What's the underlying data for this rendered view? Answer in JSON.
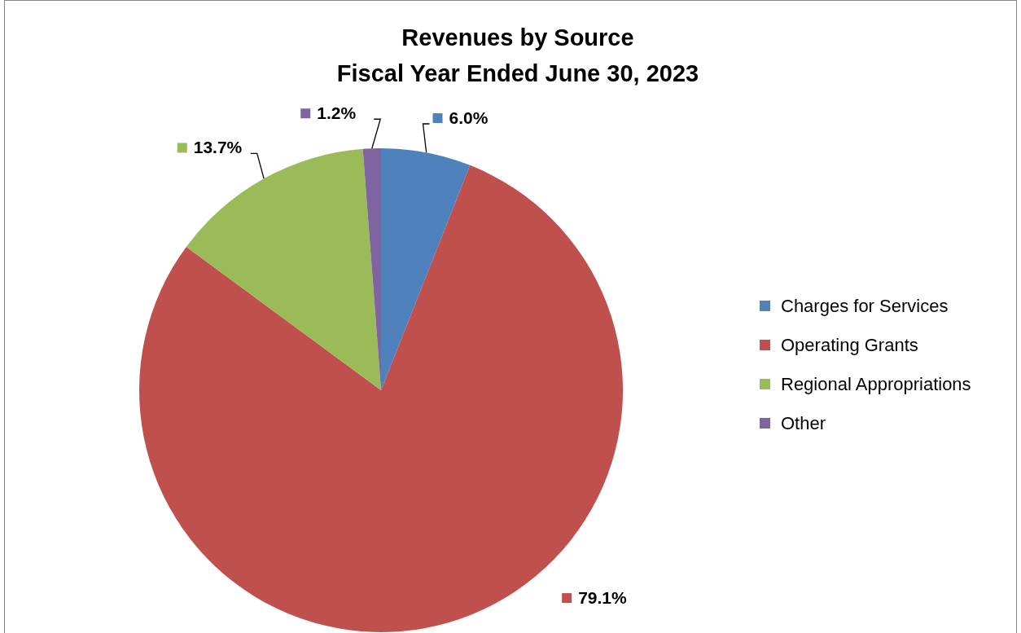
{
  "chart_data": {
    "type": "pie",
    "title": "Revenues by Source",
    "subtitle": "Fiscal Year Ended June 30, 2023",
    "categories": [
      "Charges for Services",
      "Operating Grants",
      "Regional Appropriations",
      "Other"
    ],
    "values": [
      6.0,
      79.1,
      13.7,
      1.2
    ],
    "colors": [
      "#4f81bd",
      "#c0504d",
      "#9bbb59",
      "#8064a2"
    ],
    "value_labels": [
      "6.0%",
      "79.1%",
      "13.7%",
      "1.2%"
    ],
    "legend": "right"
  }
}
